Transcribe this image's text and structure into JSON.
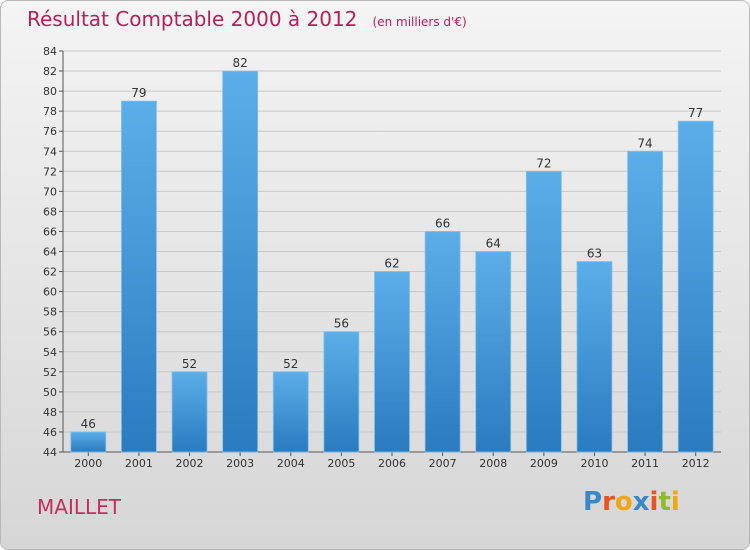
{
  "title": "Résultat Comptable 2000 à 2012",
  "unit": "(en milliers d'€)",
  "commune": "MAILLET",
  "logo": {
    "text": "Proxiti",
    "letters": [
      {
        "char": "P",
        "color": "#3a87c9"
      },
      {
        "char": "r",
        "color": "#e8531f"
      },
      {
        "char": "o",
        "color": "#f2a516"
      },
      {
        "char": "x",
        "color": "#3a87c9"
      },
      {
        "char": "i",
        "color": "#e8531f"
      },
      {
        "char": "t",
        "color": "#8dbb2a"
      },
      {
        "char": "i",
        "color": "#f2a516"
      }
    ]
  },
  "colors": {
    "bar_top": "#5caee9",
    "bar_bottom": "#2a7bbf",
    "title": "#b3205a",
    "grid": "#c8c8c8"
  },
  "chart_data": {
    "type": "bar",
    "title": "Résultat Comptable 2000 à 2012",
    "xlabel": "",
    "ylabel": "",
    "categories": [
      "2000",
      "2001",
      "2002",
      "2003",
      "2004",
      "2005",
      "2006",
      "2007",
      "2008",
      "2009",
      "2010",
      "2011",
      "2012"
    ],
    "values": [
      46,
      79,
      52,
      82,
      52,
      56,
      62,
      66,
      64,
      72,
      63,
      74,
      77
    ],
    "ylim": [
      44,
      84
    ],
    "yticks": [
      44,
      46,
      48,
      50,
      52,
      54,
      56,
      58,
      60,
      62,
      64,
      66,
      68,
      70,
      72,
      74,
      76,
      78,
      80,
      82,
      84
    ],
    "grid": true,
    "legend": "none"
  }
}
